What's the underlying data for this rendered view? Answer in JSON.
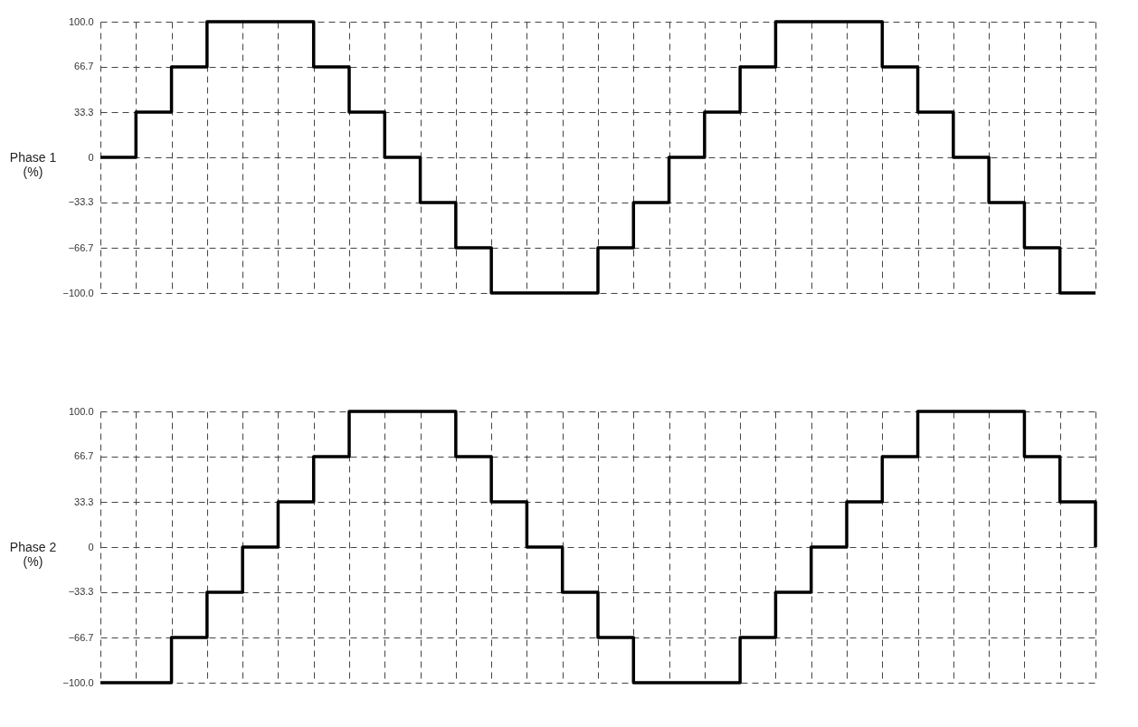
{
  "chart_data": [
    {
      "type": "step",
      "ylabel": "Phase 1\n(%)",
      "categories": [
        null,
        null,
        null,
        null,
        null,
        null,
        null,
        null,
        null,
        null,
        null,
        null,
        null,
        null,
        null,
        null,
        null,
        null,
        null,
        null,
        null,
        null,
        null,
        null,
        null,
        null,
        null,
        null,
        null
      ],
      "series": [
        {
          "color": "#000000",
          "values": [
            0,
            33.3,
            66.7,
            100,
            100,
            100,
            66.7,
            33.3,
            0,
            -33.3,
            -66.7,
            -100,
            -100,
            -100,
            -66.7,
            -33.3,
            0,
            33.3,
            66.7,
            100,
            100,
            100,
            66.7,
            33.3,
            0,
            -33.3,
            -66.7,
            -100,
            -100
          ]
        }
      ],
      "ylim": [
        -100,
        100
      ],
      "yticks": [
        {
          "value": -100,
          "label": "−100.0"
        },
        {
          "value": -66.7,
          "label": "−66.7"
        },
        {
          "value": -33.3,
          "label": "−33.3"
        },
        0,
        33.3,
        66.7,
        {
          "value": 100,
          "label": "100.0"
        }
      ],
      "grid": true,
      "line_style": "solid",
      "tick_labels": "y"
    },
    {
      "type": "step",
      "ylabel": "Phase 2\n(%)",
      "categories": [
        null,
        null,
        null,
        null,
        null,
        null,
        null,
        null,
        null,
        null,
        null,
        null,
        null,
        null,
        null,
        null,
        null,
        null,
        null,
        null,
        null,
        null,
        null,
        null,
        null,
        null,
        null,
        null,
        null
      ],
      "series": [
        {
          "color": "#000000",
          "values": [
            -100,
            -100,
            -66.7,
            -33.3,
            0,
            33.3,
            66.7,
            100,
            100,
            100,
            66.7,
            33.3,
            0,
            -33.3,
            -66.7,
            -100,
            -100,
            -100,
            -66.7,
            -33.3,
            0,
            33.3,
            66.7,
            100,
            100,
            100,
            66.7,
            33.3,
            0
          ]
        }
      ],
      "ylim": [
        -100,
        100
      ],
      "yticks": [
        {
          "value": -100,
          "label": "−100.0"
        },
        {
          "value": -66.7,
          "label": "−66.7"
        },
        {
          "value": -33.3,
          "label": "−33.3"
        },
        0,
        33.3,
        66.7,
        {
          "value": 100,
          "label": "100.0"
        }
      ],
      "grid": true,
      "line_style": "solid",
      "tick_labels": "y"
    }
  ]
}
